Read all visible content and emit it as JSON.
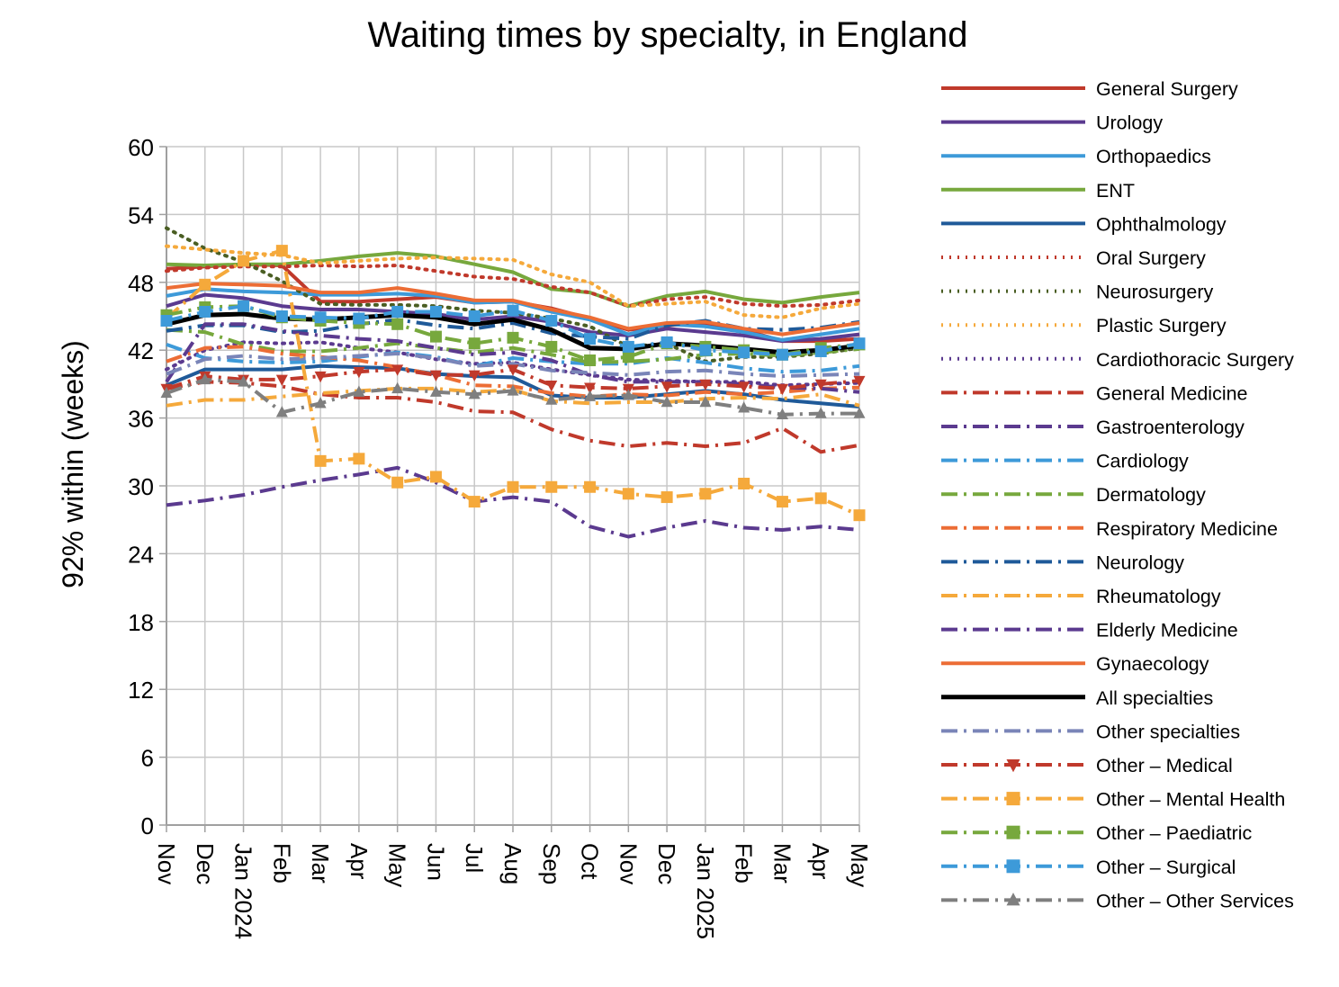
{
  "chart_data": {
    "type": "line",
    "title": "Waiting times by specialty, in England",
    "ylabel": "92% within  (weeks)",
    "xlabel": "",
    "ylim": [
      0,
      60
    ],
    "yticks": [
      0,
      6,
      12,
      18,
      24,
      30,
      36,
      42,
      48,
      54,
      60
    ],
    "categories": [
      "Nov",
      "Dec",
      "Jan 2024",
      "Feb",
      "Mar",
      "Apr",
      "May",
      "Jun",
      "Jul",
      "Aug",
      "Sep",
      "Oct",
      "Nov",
      "Dec",
      "Jan 2025",
      "Feb",
      "Mar",
      "Apr",
      "May"
    ],
    "grid": "vertical and horizontal",
    "legend_position": "right",
    "series": [
      {
        "name": "General Surgery",
        "color": "#c0392b",
        "style": "solid",
        "marker": "none",
        "values": [
          49.2,
          49.4,
          49.6,
          49.5,
          46.3,
          46.3,
          46.5,
          46.7,
          46.2,
          46.3,
          45.7,
          44.8,
          43.8,
          44.2,
          44.4,
          43.8,
          42.8,
          42.8,
          43.0
        ]
      },
      {
        "name": "Urology",
        "color": "#5b3a8f",
        "style": "solid",
        "marker": "none",
        "values": [
          45.9,
          46.9,
          46.6,
          45.9,
          45.6,
          45.6,
          45.4,
          45.2,
          44.7,
          45.0,
          44.5,
          43.6,
          43.3,
          43.9,
          43.6,
          43.3,
          42.8,
          43.0,
          43.4
        ]
      },
      {
        "name": "Orthopaedics",
        "color": "#3d9ad9",
        "style": "solid",
        "marker": "none",
        "values": [
          46.8,
          47.4,
          47.2,
          47.1,
          46.9,
          46.9,
          47.0,
          46.8,
          46.2,
          46.3,
          45.4,
          44.7,
          43.4,
          44.3,
          44.1,
          43.6,
          42.9,
          43.4,
          43.9
        ]
      },
      {
        "name": "ENT",
        "color": "#77a83d",
        "style": "solid",
        "marker": "none",
        "values": [
          49.6,
          49.5,
          49.6,
          49.6,
          49.9,
          50.3,
          50.6,
          50.3,
          49.6,
          48.9,
          47.4,
          47.1,
          45.9,
          46.8,
          47.2,
          46.5,
          46.2,
          46.7,
          47.1
        ]
      },
      {
        "name": "Ophthalmology",
        "color": "#1f5a99",
        "style": "solid",
        "marker": "none",
        "values": [
          38.9,
          40.3,
          40.3,
          40.3,
          40.6,
          40.5,
          40.4,
          39.9,
          39.7,
          39.6,
          38.0,
          37.8,
          37.8,
          38.1,
          38.4,
          38.1,
          37.6,
          37.3,
          37.0
        ]
      },
      {
        "name": "Oral Surgery",
        "color": "#c0392b",
        "style": "dot",
        "marker": "none",
        "values": [
          49.0,
          49.3,
          49.4,
          49.4,
          49.5,
          49.4,
          49.5,
          49.0,
          48.5,
          48.3,
          47.6,
          47.1,
          45.9,
          46.5,
          46.7,
          46.1,
          45.9,
          46.0,
          46.4
        ]
      },
      {
        "name": "Neurosurgery",
        "color": "#4a5e23",
        "style": "dot",
        "marker": "none",
        "values": [
          52.8,
          51.0,
          49.8,
          48.1,
          46.1,
          46.0,
          46.0,
          45.9,
          45.5,
          45.3,
          44.8,
          44.1,
          42.3,
          42.6,
          41.0,
          41.4,
          41.4,
          41.7,
          42.2
        ]
      },
      {
        "name": "Plastic Surgery",
        "color": "#f5a93b",
        "style": "dot",
        "marker": "none",
        "values": [
          51.2,
          50.9,
          50.6,
          50.4,
          49.7,
          49.9,
          50.1,
          50.2,
          50.1,
          50.0,
          48.7,
          48.0,
          45.9,
          46.1,
          46.3,
          45.1,
          44.9,
          45.7,
          46.1
        ]
      },
      {
        "name": "Cardiothoracic Surgery",
        "color": "#5b3a8f",
        "style": "dot",
        "marker": "none",
        "values": [
          40.3,
          42.0,
          42.7,
          42.6,
          42.7,
          42.2,
          41.8,
          41.2,
          40.8,
          40.9,
          40.3,
          39.8,
          39.4,
          39.3,
          39.2,
          39.2,
          38.9,
          39.0,
          39.1
        ]
      },
      {
        "name": "General Medicine",
        "color": "#c0392b",
        "style": "dashdot",
        "marker": "none",
        "values": [
          38.6,
          39.2,
          39.1,
          38.8,
          38.1,
          37.8,
          37.8,
          37.4,
          36.6,
          36.5,
          35.0,
          34.0,
          33.5,
          33.8,
          33.5,
          33.8,
          35.1,
          33.0,
          33.6
        ]
      },
      {
        "name": "Gastroenterology",
        "color": "#5b3a8f",
        "style": "dashdot",
        "marker": "none",
        "values": [
          28.3,
          28.7,
          29.2,
          29.9,
          30.5,
          31.0,
          31.6,
          30.3,
          28.6,
          29.0,
          28.6,
          26.4,
          25.5,
          26.3,
          26.9,
          26.3,
          26.1,
          26.4,
          26.1
        ]
      },
      {
        "name": "Cardiology",
        "color": "#3d9ad9",
        "style": "dashdot",
        "marker": "none",
        "values": [
          42.5,
          41.3,
          41.0,
          40.9,
          41.0,
          41.4,
          41.8,
          41.4,
          40.6,
          41.3,
          41.0,
          40.8,
          40.8,
          41.3,
          40.9,
          40.4,
          40.1,
          40.2,
          40.6
        ]
      },
      {
        "name": "Dermatology",
        "color": "#77a83d",
        "style": "dashdot",
        "marker": "none",
        "values": [
          43.8,
          43.6,
          42.5,
          41.9,
          41.9,
          42.2,
          42.6,
          42.2,
          41.8,
          42.2,
          41.6,
          40.9,
          41.0,
          41.2,
          41.6,
          41.7,
          41.5,
          41.8,
          42.1
        ]
      },
      {
        "name": "Respiratory Medicine",
        "color": "#ec6d35",
        "style": "dashdot",
        "marker": "none",
        "values": [
          41.0,
          42.2,
          42.3,
          41.7,
          41.4,
          41.1,
          40.5,
          39.8,
          38.9,
          38.8,
          38.2,
          37.9,
          38.1,
          38.0,
          38.3,
          38.1,
          38.3,
          38.6,
          38.7
        ]
      },
      {
        "name": "Neurology",
        "color": "#1f5a99",
        "style": "dashdot",
        "marker": "none",
        "values": [
          43.7,
          44.2,
          44.2,
          43.6,
          43.7,
          44.3,
          44.7,
          44.2,
          43.9,
          44.4,
          43.5,
          43.2,
          43.0,
          44.2,
          44.6,
          43.9,
          43.8,
          44.0,
          44.5
        ]
      },
      {
        "name": "Rheumatology",
        "color": "#f5a93b",
        "style": "dashdot",
        "marker": "none",
        "values": [
          37.1,
          37.6,
          37.6,
          37.9,
          38.2,
          38.4,
          38.6,
          38.6,
          38.3,
          38.5,
          37.5,
          37.3,
          37.4,
          37.4,
          37.7,
          37.8,
          37.7,
          38.1,
          37.1
        ]
      },
      {
        "name": "Elderly Medicine",
        "color": "#5b3a8f",
        "style": "dashdot",
        "marker": "none",
        "values": [
          39.2,
          44.3,
          44.3,
          43.7,
          43.3,
          43.0,
          42.8,
          42.2,
          41.6,
          41.8,
          41.1,
          39.8,
          39.2,
          39.2,
          39.2,
          39.0,
          38.7,
          38.6,
          38.3
        ]
      },
      {
        "name": "Gynaecology",
        "color": "#ec6d35",
        "style": "solid",
        "marker": "none",
        "values": [
          47.5,
          47.9,
          47.8,
          47.7,
          47.1,
          47.1,
          47.5,
          47.0,
          46.4,
          46.4,
          45.6,
          44.9,
          43.9,
          44.4,
          44.5,
          43.9,
          43.4,
          43.9,
          44.4
        ]
      },
      {
        "name": "All specialties",
        "color": "#000000",
        "style": "solid-bold",
        "marker": "none",
        "values": [
          44.3,
          45.1,
          45.2,
          44.8,
          44.7,
          44.9,
          45.1,
          44.9,
          44.3,
          44.7,
          43.8,
          42.2,
          42.1,
          42.6,
          42.4,
          42.1,
          41.8,
          42.0,
          42.4
        ]
      },
      {
        "name": "Other specialties",
        "color": "#7a85b8",
        "style": "dashdot",
        "marker": "none",
        "values": [
          39.9,
          41.2,
          41.5,
          41.2,
          41.3,
          41.5,
          41.7,
          41.3,
          40.6,
          40.8,
          40.2,
          40.0,
          39.8,
          40.1,
          40.2,
          39.9,
          39.7,
          39.8,
          39.9
        ]
      },
      {
        "name": "Other – Medical",
        "color": "#c0392b",
        "style": "dashdot",
        "marker": "triangle-down",
        "values": [
          38.6,
          39.7,
          39.4,
          39.4,
          39.7,
          40.1,
          40.3,
          39.8,
          39.8,
          40.3,
          38.9,
          38.7,
          38.6,
          38.8,
          39.0,
          38.8,
          38.6,
          39.0,
          39.3
        ]
      },
      {
        "name": "Other – Mental Health",
        "color": "#f5a93b",
        "style": "dashdot",
        "marker": "square",
        "values": [
          44.8,
          47.8,
          49.9,
          50.8,
          32.2,
          32.4,
          30.3,
          30.8,
          28.6,
          29.9,
          29.9,
          29.9,
          29.3,
          29.0,
          29.3,
          30.2,
          28.6,
          28.9,
          27.4
        ]
      },
      {
        "name": "Other – Paediatric",
        "color": "#77a83d",
        "style": "dashdot",
        "marker": "square",
        "values": [
          45.1,
          45.8,
          45.9,
          44.9,
          44.6,
          44.4,
          44.3,
          43.2,
          42.6,
          43.1,
          42.3,
          41.1,
          41.4,
          42.6,
          42.3,
          42.0,
          41.6,
          42.2,
          42.5
        ]
      },
      {
        "name": "Other – Surgical",
        "color": "#3d9ad9",
        "style": "dashdot",
        "marker": "square",
        "values": [
          44.6,
          45.4,
          45.9,
          45.0,
          44.9,
          44.8,
          45.4,
          45.4,
          45.0,
          45.5,
          44.6,
          43.0,
          42.3,
          42.7,
          42.0,
          41.8,
          41.6,
          41.9,
          42.6
        ]
      },
      {
        "name": "Other – Other Services",
        "color": "#7f7f7f",
        "style": "dashdot",
        "marker": "triangle-up",
        "values": [
          38.2,
          39.4,
          39.2,
          36.5,
          37.3,
          38.3,
          38.6,
          38.3,
          38.1,
          38.4,
          37.6,
          37.9,
          38.0,
          37.4,
          37.4,
          36.9,
          36.3,
          36.4,
          36.4
        ]
      }
    ]
  }
}
